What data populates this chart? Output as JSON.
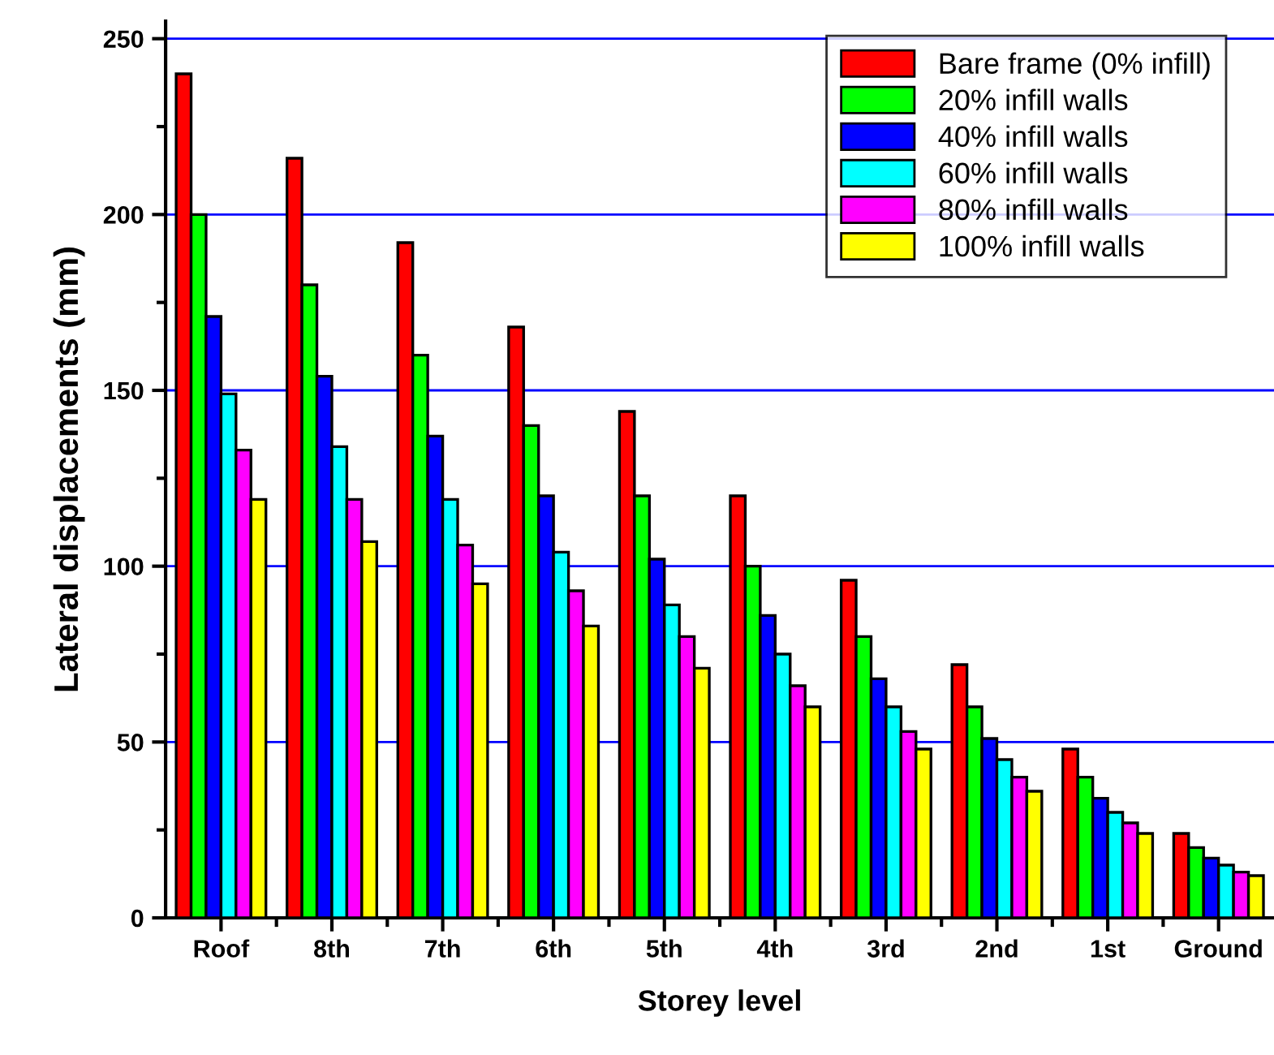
{
  "chart_data": {
    "type": "bar",
    "xlabel": "Storey level",
    "ylabel": "Lateral displacements (mm)",
    "categories": [
      "Roof",
      "8th",
      "7th",
      "6th",
      "5th",
      "4th",
      "3rd",
      "2nd",
      "1st",
      "Ground"
    ],
    "series": [
      {
        "name": "Bare frame (0% infill)",
        "color": "#ff0000",
        "values": [
          240,
          216,
          192,
          168,
          144,
          120,
          96,
          72,
          48,
          24
        ]
      },
      {
        "name": "20% infill walls",
        "color": "#00ff00",
        "values": [
          200,
          180,
          160,
          140,
          120,
          100,
          80,
          60,
          40,
          20
        ]
      },
      {
        "name": "40% infill walls",
        "color": "#0000ff",
        "values": [
          171,
          154,
          137,
          120,
          102,
          86,
          68,
          51,
          34,
          17
        ]
      },
      {
        "name": "60% infill walls",
        "color": "#00ffff",
        "values": [
          149,
          134,
          119,
          104,
          89,
          75,
          60,
          45,
          30,
          15
        ]
      },
      {
        "name": "80% infill walls",
        "color": "#ff00ff",
        "values": [
          133,
          119,
          106,
          93,
          80,
          66,
          53,
          40,
          27,
          13
        ]
      },
      {
        "name": "100% infill walls",
        "color": "#ffff00",
        "values": [
          119,
          107,
          95,
          83,
          71,
          60,
          48,
          36,
          24,
          12
        ]
      }
    ],
    "ylim": [
      0,
      255
    ],
    "yticks": [
      0,
      {
        "value": 25,
        "label": null
      },
      50,
      {
        "value": 75,
        "label": null
      },
      100,
      {
        "value": 125,
        "label": null
      },
      150,
      {
        "value": 175,
        "label": null
      },
      200,
      {
        "value": 225,
        "label": null
      },
      250
    ],
    "grid": "y",
    "legend": "top right"
  }
}
